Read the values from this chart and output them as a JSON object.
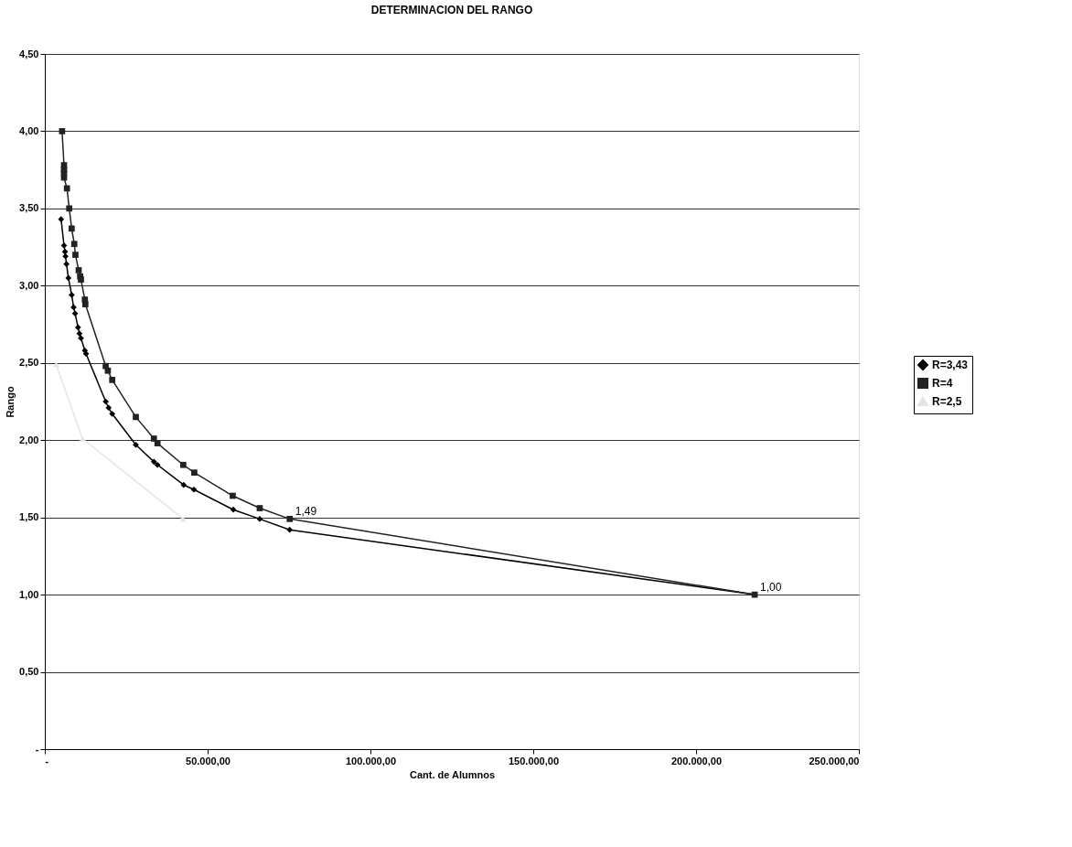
{
  "chart_data": {
    "type": "line",
    "title": "DETERMINACION DEL RANGO",
    "xlabel": "Cant. de Alumnos",
    "ylabel": "Rango",
    "xlim": [
      0,
      250000
    ],
    "ylim": [
      0,
      4.5
    ],
    "xticks": [
      {
        "value": 0,
        "label": "-"
      },
      {
        "value": 50000,
        "label": "50.000,00"
      },
      {
        "value": 100000,
        "label": "100.000,00"
      },
      {
        "value": 150000,
        "label": "150.000,00"
      },
      {
        "value": 200000,
        "label": "200.000,00"
      },
      {
        "value": 250000,
        "label": "250.000,00"
      }
    ],
    "yticks": [
      {
        "value": 0,
        "label": "-"
      },
      {
        "value": 0.5,
        "label": "0,50"
      },
      {
        "value": 1,
        "label": "1,00"
      },
      {
        "value": 1.5,
        "label": "1,50"
      },
      {
        "value": 2,
        "label": "2,00"
      },
      {
        "value": 2.5,
        "label": "2,50"
      },
      {
        "value": 3,
        "label": "3,00"
      },
      {
        "value": 3.5,
        "label": "3,50"
      },
      {
        "value": 4,
        "label": "4,00"
      },
      {
        "value": 4.5,
        "label": "4,50"
      }
    ],
    "grid": "y",
    "legend": "right",
    "series": [
      {
        "name": "R=3,43",
        "color": "#000000",
        "marker": "diamond",
        "x": [
          5000,
          5900,
          6200,
          6350,
          6650,
          7250,
          8250,
          8850,
          9300,
          10200,
          10650,
          11100,
          12300,
          12650,
          18700,
          19600,
          20700,
          27950,
          33500,
          34600,
          42650,
          45800,
          57900,
          66000,
          75200,
          218000
        ],
        "values": [
          3.43,
          3.26,
          3.22,
          3.19,
          3.14,
          3.05,
          2.94,
          2.86,
          2.82,
          2.73,
          2.69,
          2.66,
          2.58,
          2.56,
          2.25,
          2.21,
          2.17,
          1.97,
          1.86,
          1.84,
          1.71,
          1.68,
          1.55,
          1.49,
          1.42,
          1.0
        ]
      },
      {
        "name": "R=4",
        "color": "#222222",
        "marker": "square",
        "x": [
          5300,
          5900,
          5900,
          5900,
          5900,
          6800,
          7500,
          8250,
          9050,
          9400,
          10400,
          10850,
          11100,
          12300,
          12450,
          18700,
          19350,
          20700,
          27950,
          33500,
          34600,
          42500,
          45900,
          57700,
          66000,
          75200,
          218000
        ],
        "values": [
          4.0,
          3.78,
          3.75,
          3.73,
          3.7,
          3.63,
          3.5,
          3.37,
          3.27,
          3.2,
          3.1,
          3.06,
          3.04,
          2.91,
          2.88,
          2.48,
          2.45,
          2.39,
          2.15,
          2.01,
          1.98,
          1.84,
          1.79,
          1.64,
          1.56,
          1.49,
          1.0
        ]
      },
      {
        "name": "R=2,5",
        "color": "#e4e4e4",
        "marker": "triangle",
        "x": [
          3500,
          11550,
          42500
        ],
        "values": [
          2.49,
          2.01,
          1.49
        ]
      }
    ],
    "annotations": [
      {
        "text": "1,49",
        "x": 75200,
        "y": 1.49
      },
      {
        "text": "1,00",
        "x": 218000,
        "y": 1.0
      }
    ]
  }
}
